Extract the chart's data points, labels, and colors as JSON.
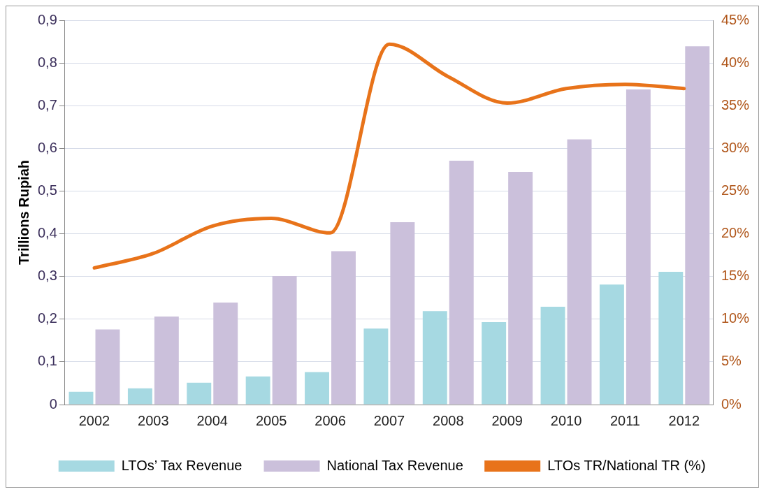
{
  "chart_data": {
    "type": "bar",
    "ylabel": "Trillions Rupiah",
    "categories": [
      "2002",
      "2003",
      "2004",
      "2005",
      "2006",
      "2007",
      "2008",
      "2009",
      "2010",
      "2011",
      "2012"
    ],
    "series": [
      {
        "name": "LTOs’ Tax Revenue",
        "color": "#a6d9e2",
        "values": [
          0.03,
          0.038,
          0.051,
          0.066,
          0.076,
          0.178,
          0.219,
          0.193,
          0.229,
          0.281,
          0.311
        ]
      },
      {
        "name": "National Tax Revenue",
        "color": "#cbc0db",
        "values": [
          0.176,
          0.206,
          0.239,
          0.301,
          0.359,
          0.427,
          0.571,
          0.545,
          0.621,
          0.738,
          0.839
        ]
      },
      {
        "name": "LTOs TR/National TR (%)",
        "type": "line",
        "axis": "y2",
        "color": "#e8731a",
        "values": [
          16.0,
          17.7,
          20.9,
          21.8,
          20.1,
          42.2,
          38.4,
          35.3,
          37.0,
          37.5,
          37.0
        ]
      }
    ],
    "ylim": [
      0,
      0.9
    ],
    "yticks": [
      0,
      {
        "value": 0.1,
        "label": "0,1"
      },
      {
        "value": 0.2,
        "label": "0,2"
      },
      {
        "value": 0.3,
        "label": "0,3"
      },
      {
        "value": 0.4,
        "label": "0,4"
      },
      {
        "value": 0.5,
        "label": "0,5"
      },
      {
        "value": 0.6,
        "label": "0,6"
      },
      {
        "value": 0.7,
        "label": "0,7"
      },
      {
        "value": 0.8,
        "label": "0,8"
      },
      {
        "value": 0.9,
        "label": "0,9"
      }
    ],
    "y2lim": [
      0,
      45
    ],
    "y2ticks": [
      {
        "value": 0,
        "label": "0%"
      },
      {
        "value": 5,
        "label": "5%"
      },
      {
        "value": 10,
        "label": "10%"
      },
      {
        "value": 15,
        "label": "15%"
      },
      {
        "value": 20,
        "label": "20%"
      },
      {
        "value": 25,
        "label": "25%"
      },
      {
        "value": 30,
        "label": "30%"
      },
      {
        "value": 35,
        "label": "35%"
      },
      {
        "value": 40,
        "label": "40%"
      },
      {
        "value": 45,
        "label": "45%"
      }
    ],
    "grid": "y",
    "legend": "bottom",
    "marker": "none",
    "line_style": "solid"
  }
}
